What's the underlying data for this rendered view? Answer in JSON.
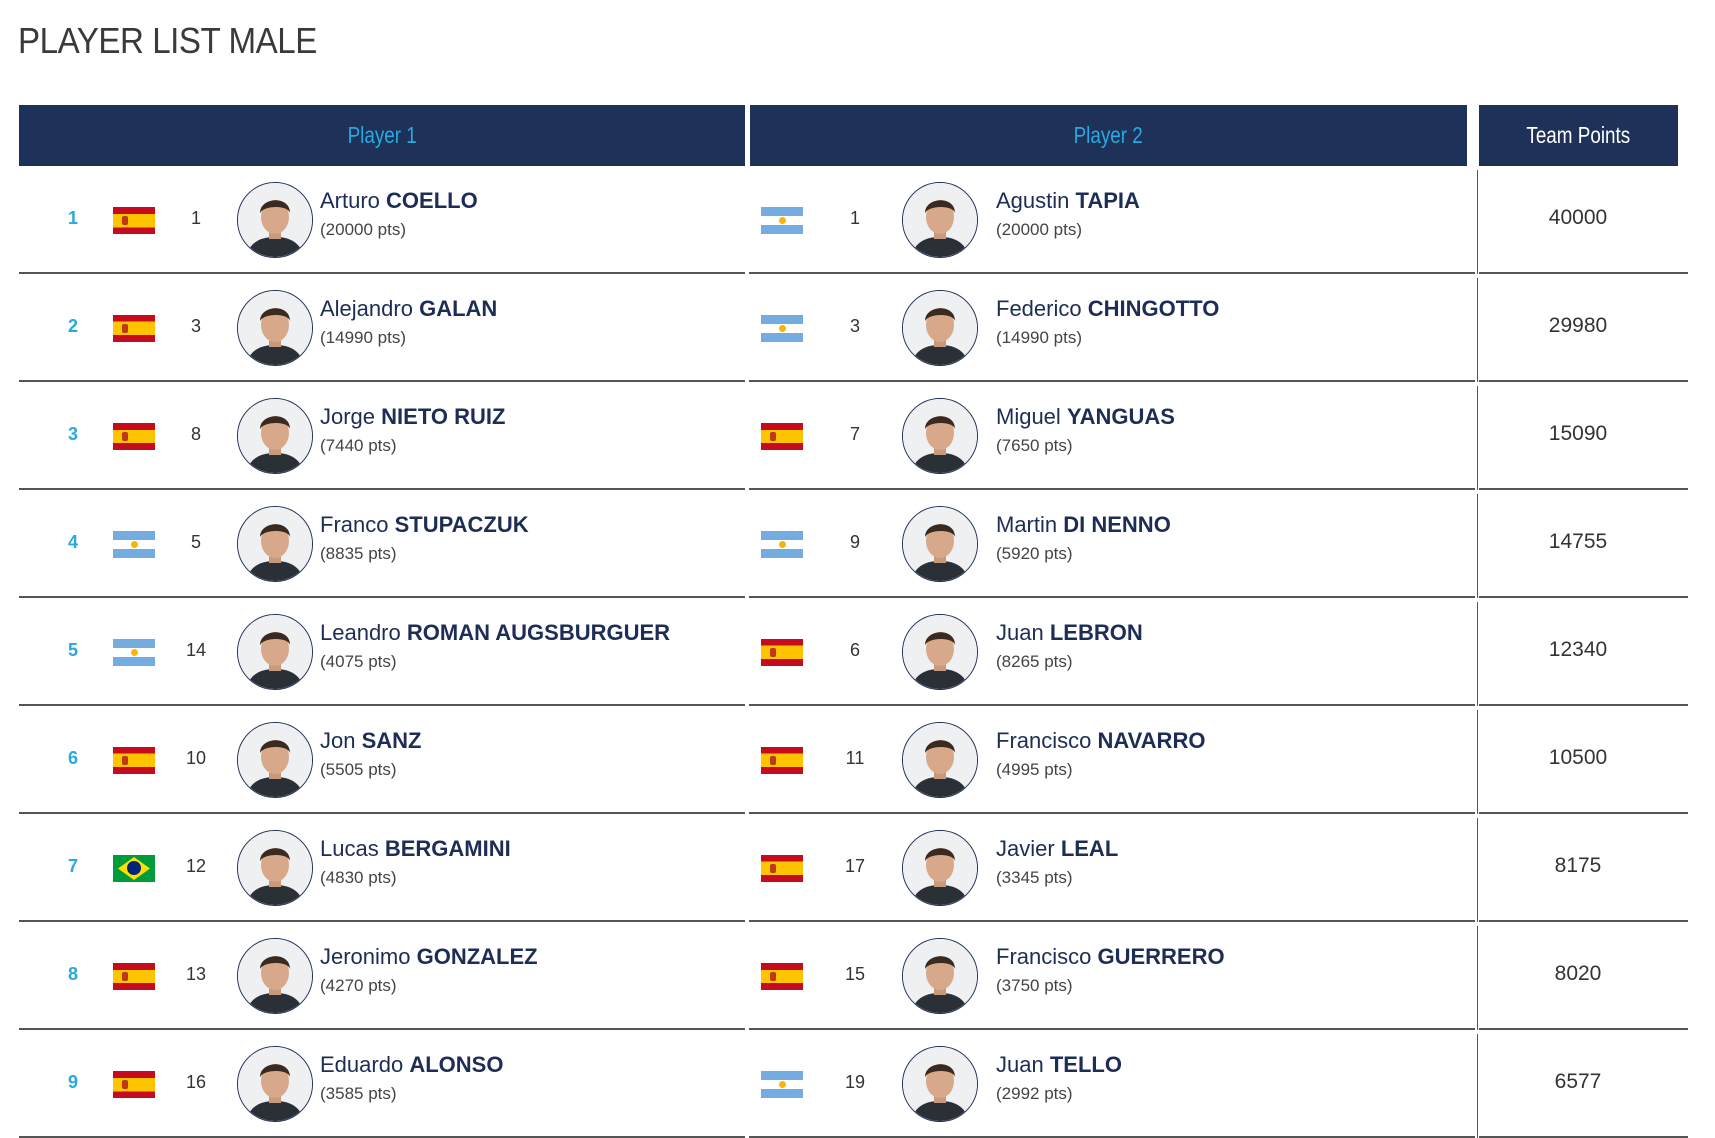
{
  "page_title": "PLAYER LIST MALE",
  "headers": {
    "player1": "Player 1",
    "player2": "Player 2",
    "team_points": "Team Points"
  },
  "colors": {
    "header_bg": "#1e3158",
    "header_text": "#2aa8e0",
    "name": "#1e2d55",
    "rank": "#2aa8e0"
  },
  "pts_suffix": "pts",
  "rows": [
    {
      "rank": "1",
      "p1": {
        "flag": "spain",
        "seed": "1",
        "first": "Arturo",
        "last": "COELLO",
        "pts": "(20000 pts)"
      },
      "p2": {
        "flag": "argentina",
        "seed": "1",
        "first": "Agustin",
        "last": "TAPIA",
        "pts": "(20000 pts)"
      },
      "team_points": "40000"
    },
    {
      "rank": "2",
      "p1": {
        "flag": "spain",
        "seed": "3",
        "first": "Alejandro",
        "last": "GALAN",
        "pts": "(14990 pts)"
      },
      "p2": {
        "flag": "argentina",
        "seed": "3",
        "first": "Federico",
        "last": "CHINGOTTO",
        "pts": "(14990 pts)"
      },
      "team_points": "29980"
    },
    {
      "rank": "3",
      "p1": {
        "flag": "spain",
        "seed": "8",
        "first": "Jorge",
        "last": "NIETO RUIZ",
        "pts": "(7440 pts)"
      },
      "p2": {
        "flag": "spain",
        "seed": "7",
        "first": "Miguel",
        "last": "YANGUAS",
        "pts": "(7650 pts)"
      },
      "team_points": "15090"
    },
    {
      "rank": "4",
      "p1": {
        "flag": "argentina",
        "seed": "5",
        "first": "Franco",
        "last": "STUPACZUK",
        "pts": "(8835 pts)"
      },
      "p2": {
        "flag": "argentina",
        "seed": "9",
        "first": "Martin",
        "last": "DI NENNO",
        "pts": "(5920 pts)"
      },
      "team_points": "14755"
    },
    {
      "rank": "5",
      "p1": {
        "flag": "argentina",
        "seed": "14",
        "first": "Leandro",
        "last": "ROMAN AUGSBURGUER",
        "pts": "(4075 pts)"
      },
      "p2": {
        "flag": "spain",
        "seed": "6",
        "first": "Juan",
        "last": "LEBRON",
        "pts": "(8265 pts)"
      },
      "team_points": "12340"
    },
    {
      "rank": "6",
      "p1": {
        "flag": "spain",
        "seed": "10",
        "first": "Jon",
        "last": "SANZ",
        "pts": "(5505 pts)"
      },
      "p2": {
        "flag": "spain",
        "seed": "11",
        "first": "Francisco",
        "last": "NAVARRO",
        "pts": "(4995 pts)"
      },
      "team_points": "10500"
    },
    {
      "rank": "7",
      "p1": {
        "flag": "brazil",
        "seed": "12",
        "first": "Lucas",
        "last": "BERGAMINI",
        "pts": "(4830 pts)"
      },
      "p2": {
        "flag": "spain",
        "seed": "17",
        "first": "Javier",
        "last": "LEAL",
        "pts": "(3345 pts)"
      },
      "team_points": "8175"
    },
    {
      "rank": "8",
      "p1": {
        "flag": "spain",
        "seed": "13",
        "first": "Jeronimo",
        "last": "GONZALEZ",
        "pts": "(4270 pts)"
      },
      "p2": {
        "flag": "spain",
        "seed": "15",
        "first": "Francisco",
        "last": "GUERRERO",
        "pts": "(3750 pts)"
      },
      "team_points": "8020"
    },
    {
      "rank": "9",
      "p1": {
        "flag": "spain",
        "seed": "16",
        "first": "Eduardo",
        "last": "ALONSO",
        "pts": "(3585 pts)"
      },
      "p2": {
        "flag": "argentina",
        "seed": "19",
        "first": "Juan",
        "last": "TELLO",
        "pts": "(2992 pts)"
      },
      "team_points": "6577"
    }
  ]
}
